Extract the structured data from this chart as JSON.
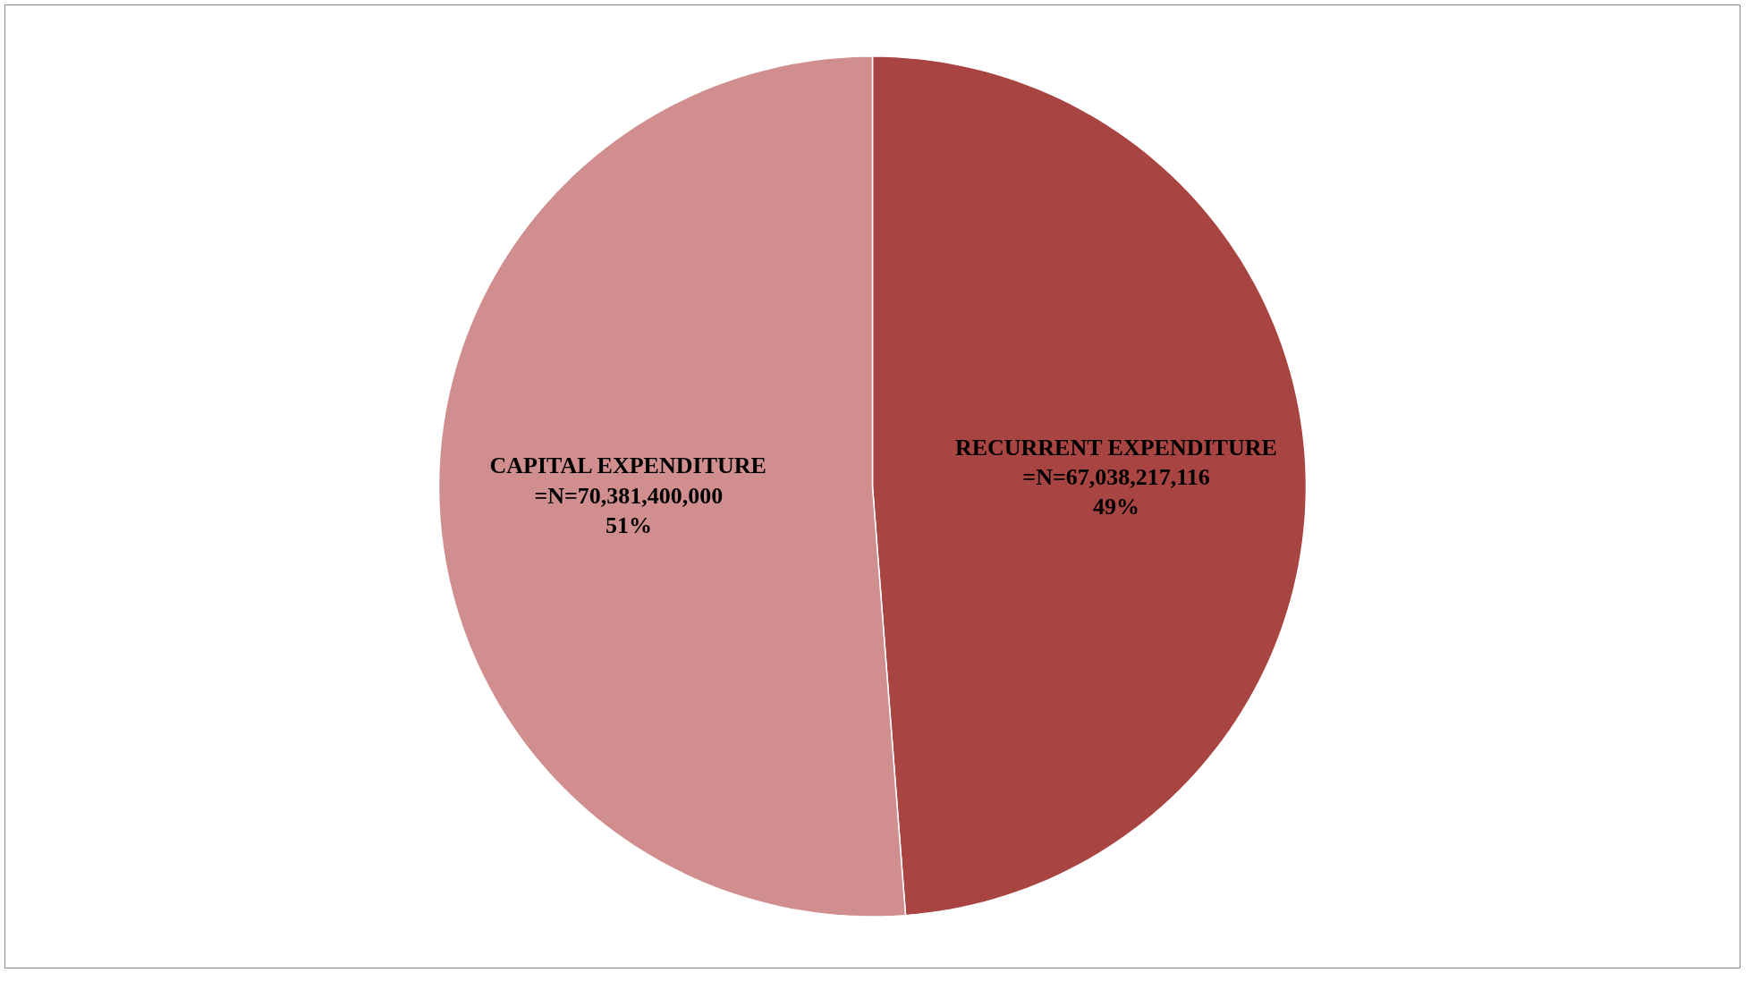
{
  "chart_data": {
    "type": "pie",
    "categories": [
      "RECURRENT EXPENDITURE",
      "CAPITAL EXPENDITURE"
    ],
    "values": [
      67038217116,
      70381400000
    ],
    "colors": [
      "#a84442",
      "#d08e8e"
    ],
    "value_labels": [
      "=N=67,038,217,116\n49%",
      "=N=70,381,400,000\n51%"
    ]
  }
}
